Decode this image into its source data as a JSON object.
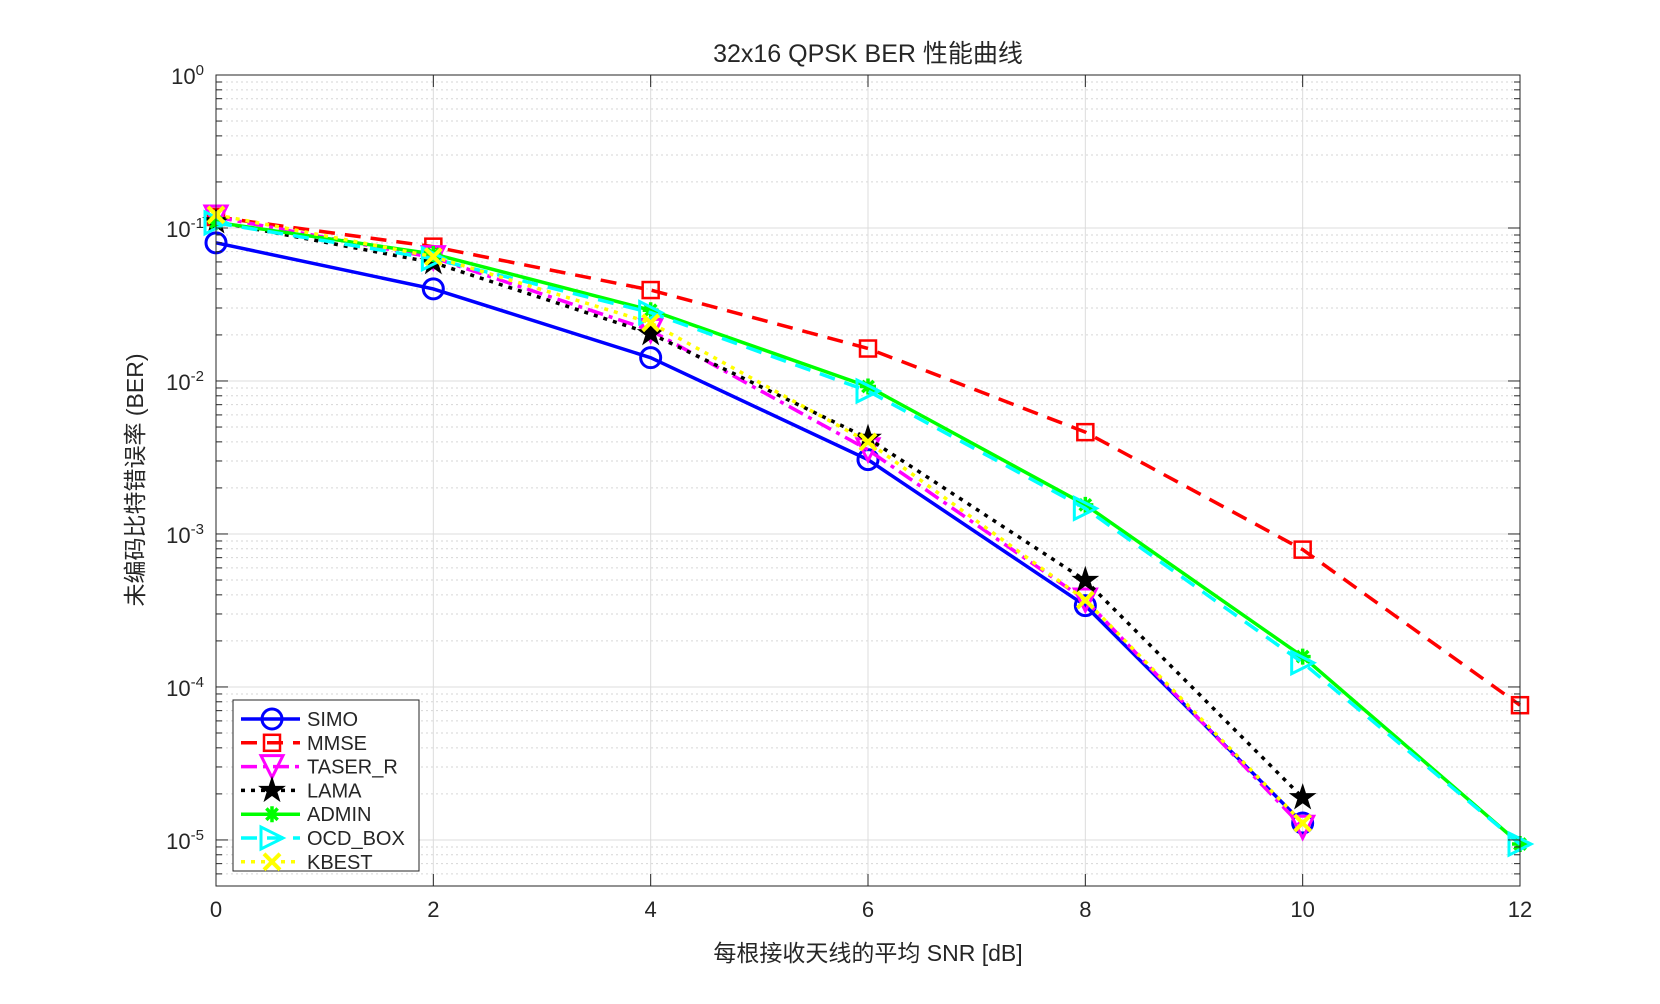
{
  "chart_data": {
    "type": "line",
    "title": "32x16 QPSK BER 性能曲线",
    "xlabel": "每根接收天线的平均 SNR [dB]",
    "ylabel": "未编码比特错误率 (BER)",
    "xlim": [
      0,
      12
    ],
    "ylim": [
      5e-06,
      1
    ],
    "yscale": "log",
    "grid": true,
    "minor_grid": true,
    "legend_position": "bottom-left",
    "x_ticks": [
      0,
      2,
      4,
      6,
      8,
      10,
      12
    ],
    "x_tick_labels": [
      "0",
      "2",
      "4",
      "6",
      "8",
      "10",
      "12"
    ],
    "y_ticks": [
      {
        "base": "10",
        "exp": "0",
        "value": 1
      },
      {
        "base": "10",
        "exp": "-1",
        "value": 0.1
      },
      {
        "base": "10",
        "exp": "-2",
        "value": 0.01
      },
      {
        "base": "10",
        "exp": "-3",
        "value": 0.001
      },
      {
        "base": "10",
        "exp": "-4",
        "value": 0.0001
      },
      {
        "base": "10",
        "exp": "-5",
        "value": 1e-05
      }
    ],
    "series": [
      {
        "name": "SIMO",
        "color": "#0000ff",
        "dash": "solid",
        "marker": "circle",
        "x": [
          0,
          2,
          4,
          6,
          8,
          10
        ],
        "y": [
          0.08,
          0.04,
          0.0142,
          0.00306,
          0.00034,
          1.29e-05
        ]
      },
      {
        "name": "MMSE",
        "color": "#ff0000",
        "dash": "dashed",
        "marker": "square",
        "x": [
          0,
          2,
          4,
          6,
          8,
          10,
          12
        ],
        "y": [
          0.118,
          0.0755,
          0.0393,
          0.0163,
          0.00463,
          0.00079,
          7.6e-05
        ]
      },
      {
        "name": "TASER_R",
        "color": "#ff00ff",
        "dash": "dashdot",
        "marker": "triangle-down",
        "x": [
          0,
          2,
          4,
          6,
          8,
          10
        ],
        "y": [
          0.118,
          0.064,
          0.0214,
          0.00355,
          0.00037,
          1.21e-05
        ]
      },
      {
        "name": "LAMA",
        "color": "#000000",
        "dash": "dotted",
        "marker": "star",
        "x": [
          0,
          2,
          4,
          6,
          8,
          10
        ],
        "y": [
          0.11,
          0.0594,
          0.0204,
          0.00422,
          0.000497,
          1.89e-05
        ]
      },
      {
        "name": "ADMIN",
        "color": "#00ff00",
        "dash": "solid",
        "marker": "asterisk",
        "x": [
          0,
          2,
          4,
          6,
          8,
          10,
          12
        ],
        "y": [
          0.109,
          0.0676,
          0.029,
          0.0092,
          0.00155,
          0.000158,
          9.4e-06
        ]
      },
      {
        "name": "OCD_BOX",
        "color": "#00ffff",
        "dash": "dashed",
        "marker": "triangle-right",
        "x": [
          0,
          2,
          4,
          6,
          8,
          10,
          12
        ],
        "y": [
          0.108,
          0.063,
          0.028,
          0.0086,
          0.00147,
          0.000144,
          9.4e-06
        ]
      },
      {
        "name": "KBEST",
        "color": "#ffff00",
        "dash": "dotted",
        "marker": "x",
        "x": [
          0,
          2,
          4,
          6,
          8,
          10
        ],
        "y": [
          0.122,
          0.065,
          0.024,
          0.004,
          0.00037,
          1.29e-05
        ]
      }
    ]
  }
}
